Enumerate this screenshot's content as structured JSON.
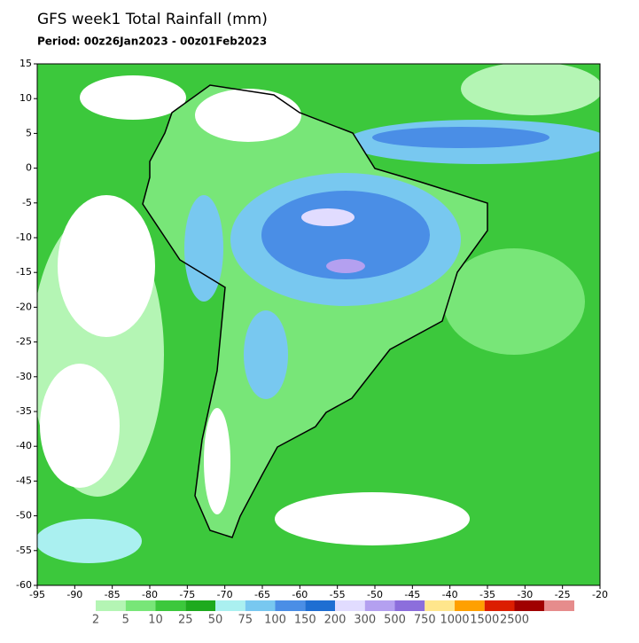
{
  "title": "GFS week1 Total Rainfall (mm)",
  "period": "Period: 00z26Jan2023 - 00z01Feb2023",
  "map": {
    "xlim": [
      -95,
      -20
    ],
    "ylim": [
      -60,
      15
    ],
    "xticks": [
      -95,
      -90,
      -85,
      -80,
      -75,
      -70,
      -65,
      -60,
      -55,
      -50,
      -45,
      -40,
      -35,
      -30,
      -25,
      -20
    ],
    "yticks": [
      15,
      10,
      5,
      0,
      -5,
      -10,
      -15,
      -20,
      -25,
      -30,
      -35,
      -40,
      -45,
      -50,
      -55,
      -60
    ],
    "colorbar": {
      "levels": [
        2,
        5,
        10,
        25,
        50,
        75,
        100,
        150,
        200,
        300,
        500,
        750,
        1000,
        1500,
        2500
      ],
      "colors": [
        "#b4f5b4",
        "#78e678",
        "#3cc83c",
        "#1eaa1e",
        "#aaf0f0",
        "#78c8f0",
        "#4a8ee6",
        "#1e6ed2",
        "#e1dcff",
        "#b4a0f0",
        "#8c6edc",
        "#ffe68c",
        "#ffa000",
        "#dc1e00",
        "#a00000",
        "#e68c8c"
      ]
    }
  }
}
